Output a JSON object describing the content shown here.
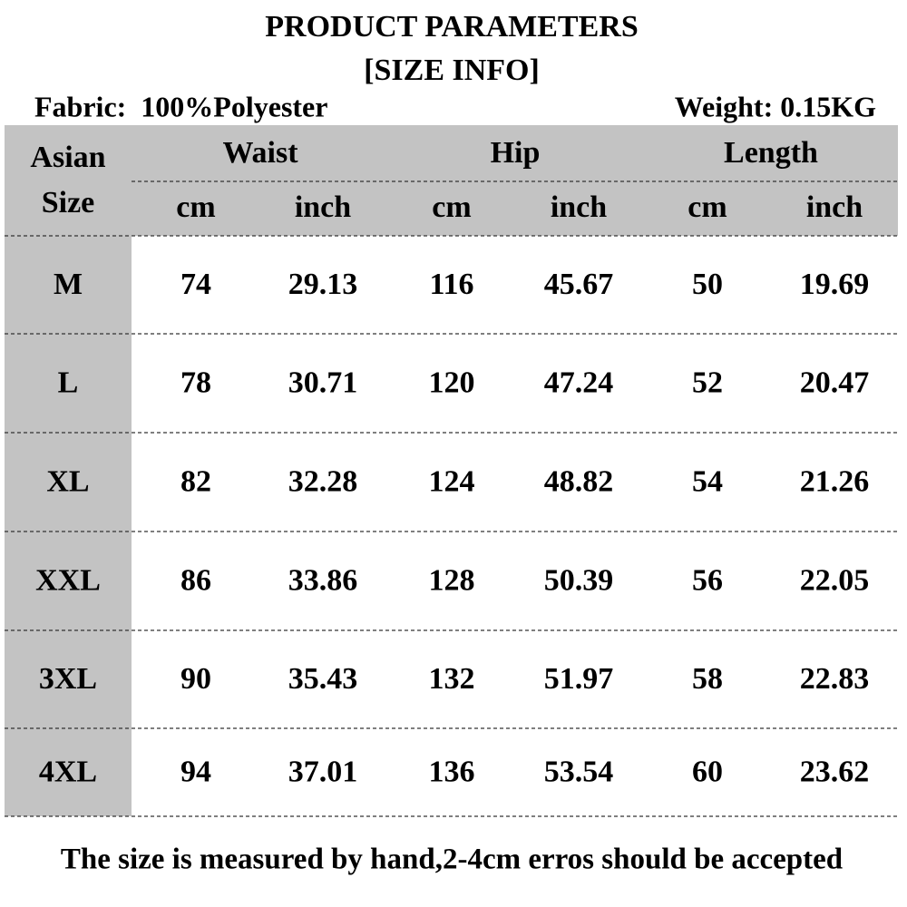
{
  "header": {
    "title": "PRODUCT PARAMETERS",
    "subtitle": "[SIZE INFO]",
    "fabric": "Fabric:  100%Polyester",
    "weight": "Weight: 0.15KG"
  },
  "table": {
    "corner": [
      "Asian",
      "Size"
    ],
    "groups": [
      "Waist",
      "Hip",
      "Length"
    ],
    "units": [
      "cm",
      "inch",
      "cm",
      "inch",
      "cm",
      "inch"
    ],
    "rows": [
      [
        "M",
        "74",
        "29.13",
        "116",
        "45.67",
        "50",
        "19.69"
      ],
      [
        "L",
        "78",
        "30.71",
        "120",
        "47.24",
        "52",
        "20.47"
      ],
      [
        "XL",
        "82",
        "32.28",
        "124",
        "48.82",
        "54",
        "21.26"
      ],
      [
        "XXL",
        "86",
        "33.86",
        "128",
        "50.39",
        "56",
        "22.05"
      ],
      [
        "3XL",
        "90",
        "35.43",
        "132",
        "51.97",
        "58",
        "22.83"
      ],
      [
        "4XL",
        "94",
        "37.01",
        "136",
        "53.54",
        "60",
        "23.62"
      ]
    ]
  },
  "footer": "The size is measured by hand,2-4cm erros should be accepted"
}
